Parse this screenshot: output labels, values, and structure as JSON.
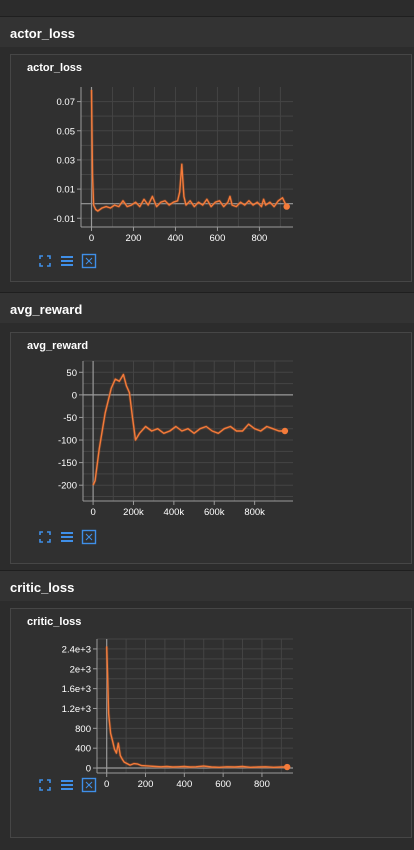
{
  "sections": [
    {
      "title": "actor_loss"
    },
    {
      "title": "avg_reward"
    },
    {
      "title": "critic_loss"
    }
  ],
  "colors": {
    "line": "#f47b3a",
    "line_faint": "#8a4a2a",
    "grid": "#444444",
    "axis": "#9a9a9a",
    "zero_line": "#999999",
    "tick_text": "#ffffff",
    "icon_blue": "#3f8fe8"
  },
  "toolbar_icons": [
    "expand-icon",
    "list-icon",
    "fit-domain-icon"
  ],
  "chart_data": [
    {
      "type": "line",
      "title": "actor_loss",
      "xlabel": "",
      "ylabel": "",
      "xlim": [
        -50,
        960
      ],
      "ylim": [
        -0.016,
        0.08
      ],
      "x_ticks": [
        0,
        200,
        400,
        600,
        800
      ],
      "x_tick_labels": [
        "0",
        "200",
        "400",
        "600",
        "800"
      ],
      "y_ticks": [
        0.07,
        0.05,
        0.03,
        0.01,
        -0.01
      ],
      "y_tick_labels": [
        "0.07",
        "0.05",
        "0.03",
        "0.01",
        "-0.01"
      ],
      "zero_line": true,
      "grid": true,
      "series": [
        {
          "x": [
            0,
            5,
            10,
            20,
            30,
            40,
            50,
            70,
            90,
            110,
            130,
            150,
            170,
            190,
            210,
            230,
            250,
            270,
            290,
            310,
            330,
            350,
            370,
            390,
            410,
            420,
            430,
            440,
            450,
            470,
            490,
            510,
            530,
            550,
            570,
            590,
            610,
            630,
            650,
            660,
            670,
            690,
            710,
            730,
            750,
            770,
            790,
            810,
            820,
            830,
            850,
            870,
            890,
            910,
            930
          ],
          "y": [
            0.078,
            0.02,
            -0.001,
            -0.004,
            -0.005,
            -0.004,
            -0.003,
            -0.002,
            -0.003,
            -0.001,
            -0.002,
            0.002,
            -0.002,
            -0.001,
            0.001,
            -0.002,
            0.003,
            -0.001,
            0.005,
            -0.002,
            0.001,
            0.002,
            -0.001,
            0.001,
            0.002,
            0.008,
            0.027,
            0.005,
            -0.001,
            0.002,
            -0.002,
            0.001,
            -0.001,
            0.003,
            -0.002,
            0.001,
            0.002,
            -0.002,
            0.001,
            0.005,
            -0.001,
            -0.002,
            0.001,
            -0.001,
            0.002,
            -0.001,
            0.001,
            -0.002,
            0.003,
            -0.001,
            0.001,
            -0.002,
            0.002,
            0.004,
            -0.002
          ]
        }
      ]
    },
    {
      "type": "line",
      "title": "avg_reward",
      "xlabel": "",
      "ylabel": "",
      "xlim": [
        -50000,
        990000
      ],
      "ylim": [
        -235,
        75
      ],
      "x_ticks": [
        0,
        200000,
        400000,
        600000,
        800000
      ],
      "x_tick_labels": [
        "0",
        "200k",
        "400k",
        "600k",
        "800k"
      ],
      "y_ticks": [
        50,
        0,
        -50,
        -100,
        -150,
        -200
      ],
      "y_tick_labels": [
        "50",
        "0",
        "-50",
        "-100",
        "-150",
        "-200"
      ],
      "zero_line": true,
      "grid": true,
      "series": [
        {
          "x": [
            0,
            10000,
            30000,
            60000,
            90000,
            110000,
            130000,
            150000,
            165000,
            180000,
            195000,
            210000,
            230000,
            260000,
            290000,
            320000,
            350000,
            380000,
            410000,
            440000,
            470000,
            500000,
            530000,
            560000,
            590000,
            620000,
            650000,
            680000,
            710000,
            740000,
            770000,
            800000,
            830000,
            860000,
            890000,
            920000,
            950000
          ],
          "y": [
            -200,
            -190,
            -120,
            -40,
            15,
            35,
            30,
            45,
            20,
            5,
            -50,
            -100,
            -85,
            -70,
            -80,
            -75,
            -85,
            -80,
            -70,
            -80,
            -75,
            -85,
            -75,
            -70,
            -80,
            -85,
            -75,
            -70,
            -80,
            -80,
            -65,
            -75,
            -80,
            -70,
            -75,
            -80,
            -80
          ]
        }
      ]
    },
    {
      "type": "line",
      "title": "critic_loss",
      "xlabel": "",
      "ylabel": "",
      "xlim": [
        -50,
        960
      ],
      "ylim": [
        -100,
        2600
      ],
      "x_ticks": [
        0,
        200,
        400,
        600,
        800
      ],
      "x_tick_labels": [
        "0",
        "200",
        "400",
        "600",
        "800"
      ],
      "y_ticks": [
        2400,
        2000,
        1600,
        1200,
        800,
        400,
        0
      ],
      "y_tick_labels": [
        "2.4e+3",
        "2e+3",
        "1.6e+3",
        "1.2e+3",
        "800",
        "400",
        "0"
      ],
      "zero_line": true,
      "grid": true,
      "series": [
        {
          "x": [
            0,
            5,
            10,
            15,
            20,
            30,
            40,
            50,
            60,
            70,
            80,
            90,
            100,
            120,
            140,
            160,
            180,
            200,
            220,
            250,
            280,
            310,
            340,
            370,
            400,
            430,
            460,
            500,
            540,
            580,
            620,
            660,
            700,
            740,
            780,
            820,
            860,
            900,
            930
          ],
          "y": [
            2450,
            1800,
            1100,
            900,
            700,
            550,
            380,
            300,
            500,
            250,
            180,
            120,
            100,
            60,
            90,
            80,
            50,
            45,
            40,
            30,
            25,
            30,
            20,
            25,
            30,
            20,
            25,
            40,
            20,
            15,
            25,
            20,
            30,
            15,
            20,
            25,
            15,
            20,
            20
          ]
        }
      ]
    }
  ]
}
